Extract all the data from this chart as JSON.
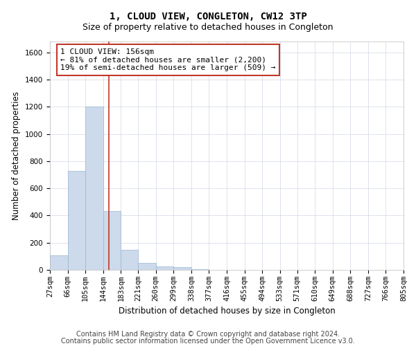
{
  "title": "1, CLOUD VIEW, CONGLETON, CW12 3TP",
  "subtitle": "Size of property relative to detached houses in Congleton",
  "xlabel": "Distribution of detached houses by size in Congleton",
  "ylabel": "Number of detached properties",
  "footer_line1": "Contains HM Land Registry data © Crown copyright and database right 2024.",
  "footer_line2": "Contains public sector information licensed under the Open Government Licence v3.0.",
  "annotation_line1": "1 CLOUD VIEW: 156sqm",
  "annotation_line2": "← 81% of detached houses are smaller (2,200)",
  "annotation_line3": "19% of semi-detached houses are larger (509) →",
  "property_line_x": 156,
  "bar_color": "#ccdaeb",
  "bar_edge_color": "#9ab5cf",
  "highlight_color": "#c0392b",
  "grid_color": "#d0d8e4",
  "bin_edges": [
    27,
    66,
    105,
    144,
    183,
    221,
    260,
    299,
    338,
    377,
    416,
    455,
    494,
    533,
    571,
    610,
    649,
    688,
    727,
    766,
    805
  ],
  "bar_heights": [
    105,
    730,
    1200,
    435,
    148,
    50,
    28,
    18,
    5,
    0,
    0,
    0,
    0,
    0,
    0,
    0,
    0,
    0,
    0,
    0
  ],
  "ylim": [
    0,
    1680
  ],
  "yticks": [
    0,
    200,
    400,
    600,
    800,
    1000,
    1200,
    1400,
    1600
  ],
  "annotation_box_color": "#ffffff",
  "annotation_box_edge": "#c0392b",
  "title_fontsize": 10,
  "subtitle_fontsize": 9,
  "axis_label_fontsize": 8.5,
  "tick_fontsize": 7.5,
  "footer_fontsize": 7,
  "annotation_fontsize": 8
}
